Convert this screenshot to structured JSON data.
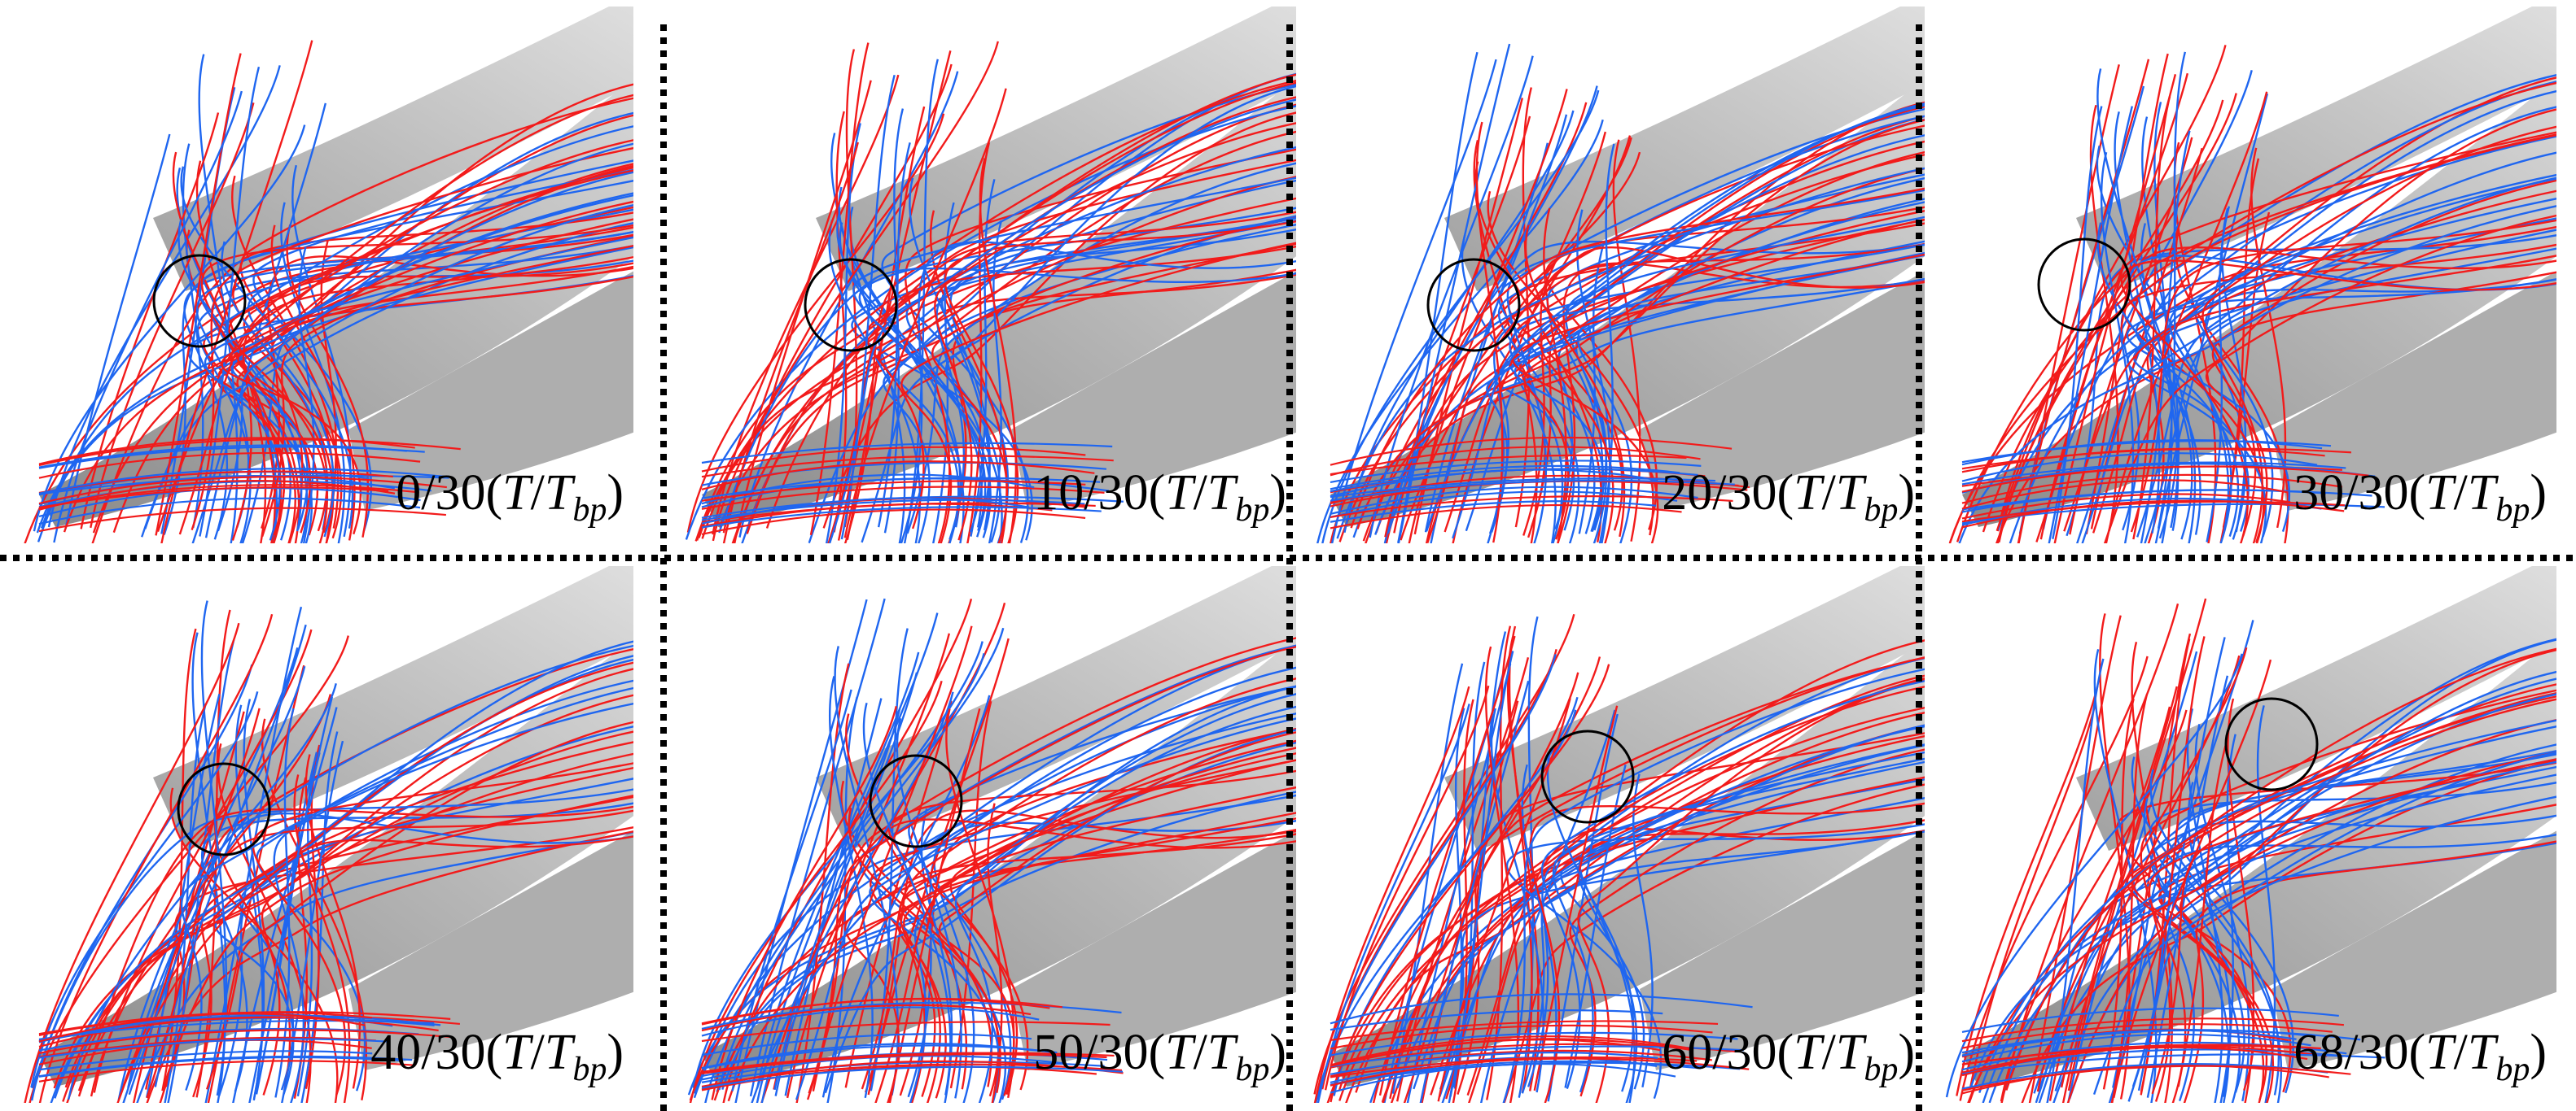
{
  "panels": [
    {
      "time": "0/30"
    },
    {
      "time": "10/30"
    },
    {
      "time": "20/30"
    },
    {
      "time": "30/30"
    },
    {
      "time": "40/30"
    },
    {
      "time": "50/30"
    },
    {
      "time": "60/30"
    },
    {
      "time": "68/30"
    }
  ],
  "unit_parts": [
    "(",
    "T",
    "/",
    "T",
    "bp",
    ")"
  ]
}
